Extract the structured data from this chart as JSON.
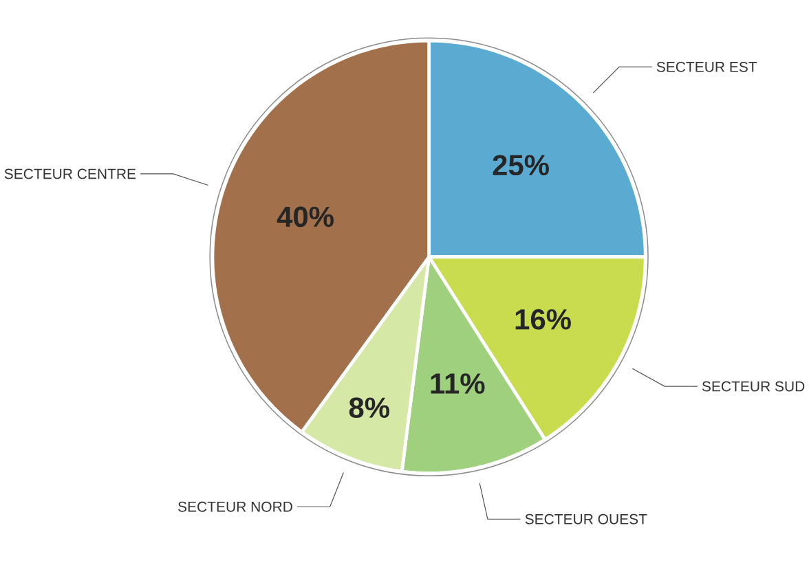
{
  "chart_data": {
    "type": "pie",
    "categories": [
      "SECTEUR EST",
      "SECTEUR SUD",
      "SECTEUR OUEST",
      "SECTEUR NORD",
      "SECTEUR CENTRE"
    ],
    "values": [
      25,
      16,
      11,
      8,
      40
    ],
    "colors": [
      "#5aaad2",
      "#c8dc4e",
      "#9fd07e",
      "#d6e8a6",
      "#a2704a"
    ],
    "value_labels": [
      "25%",
      "16%",
      "11%",
      "8%",
      "40%"
    ]
  }
}
